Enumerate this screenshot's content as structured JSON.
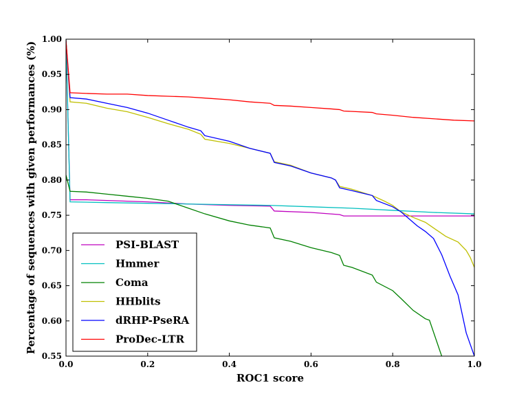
{
  "chart_data": {
    "type": "line",
    "title": "",
    "xlabel": "ROC1 score",
    "ylabel": "Percentage of sequences with given performances (%)",
    "xlim": [
      0.0,
      1.0
    ],
    "ylim": [
      0.55,
      1.0
    ],
    "x_ticks": [
      "0.0",
      "0.2",
      "0.4",
      "0.6",
      "0.8",
      "1.0"
    ],
    "y_ticks": [
      "0.55",
      "0.60",
      "0.65",
      "0.70",
      "0.75",
      "0.80",
      "0.85",
      "0.90",
      "0.95",
      "1.00"
    ],
    "grid": false,
    "legend_position": "lower-left",
    "series": [
      {
        "name": "PSI-BLAST",
        "color": "#bf00bf",
        "points": [
          [
            0.0,
            1.0
          ],
          [
            0.01,
            0.772
          ],
          [
            0.05,
            0.772
          ],
          [
            0.1,
            0.771
          ],
          [
            0.2,
            0.769
          ],
          [
            0.3,
            0.766
          ],
          [
            0.4,
            0.764
          ],
          [
            0.5,
            0.763
          ],
          [
            0.51,
            0.756
          ],
          [
            0.6,
            0.754
          ],
          [
            0.67,
            0.751
          ],
          [
            0.68,
            0.749
          ],
          [
            0.8,
            0.749
          ],
          [
            1.0,
            0.749
          ]
        ]
      },
      {
        "name": "Hmmer",
        "color": "#00bfbf",
        "points": [
          [
            0.0,
            1.0
          ],
          [
            0.01,
            0.769
          ],
          [
            0.1,
            0.768
          ],
          [
            0.2,
            0.767
          ],
          [
            0.3,
            0.766
          ],
          [
            0.4,
            0.765
          ],
          [
            0.5,
            0.764
          ],
          [
            0.6,
            0.762
          ],
          [
            0.7,
            0.76
          ],
          [
            0.8,
            0.757
          ],
          [
            0.9,
            0.754
          ],
          [
            1.0,
            0.752
          ]
        ]
      },
      {
        "name": "Coma",
        "color": "#008000",
        "points": [
          [
            0.0,
            0.807
          ],
          [
            0.01,
            0.784
          ],
          [
            0.05,
            0.783
          ],
          [
            0.1,
            0.78
          ],
          [
            0.15,
            0.777
          ],
          [
            0.2,
            0.774
          ],
          [
            0.25,
            0.77
          ],
          [
            0.3,
            0.76
          ],
          [
            0.34,
            0.752
          ],
          [
            0.4,
            0.742
          ],
          [
            0.45,
            0.736
          ],
          [
            0.5,
            0.732
          ],
          [
            0.51,
            0.718
          ],
          [
            0.55,
            0.713
          ],
          [
            0.6,
            0.704
          ],
          [
            0.65,
            0.697
          ],
          [
            0.67,
            0.693
          ],
          [
            0.68,
            0.679
          ],
          [
            0.7,
            0.676
          ],
          [
            0.75,
            0.665
          ],
          [
            0.76,
            0.655
          ],
          [
            0.8,
            0.643
          ],
          [
            0.82,
            0.632
          ],
          [
            0.85,
            0.615
          ],
          [
            0.88,
            0.603
          ],
          [
            0.89,
            0.601
          ],
          [
            0.92,
            0.55
          ]
        ]
      },
      {
        "name": "HHblits",
        "color": "#bfbf00",
        "points": [
          [
            0.0,
            0.999
          ],
          [
            0.01,
            0.911
          ],
          [
            0.05,
            0.909
          ],
          [
            0.1,
            0.902
          ],
          [
            0.15,
            0.897
          ],
          [
            0.2,
            0.889
          ],
          [
            0.25,
            0.88
          ],
          [
            0.3,
            0.872
          ],
          [
            0.33,
            0.865
          ],
          [
            0.34,
            0.858
          ],
          [
            0.4,
            0.852
          ],
          [
            0.45,
            0.845
          ],
          [
            0.5,
            0.838
          ],
          [
            0.51,
            0.826
          ],
          [
            0.55,
            0.821
          ],
          [
            0.6,
            0.81
          ],
          [
            0.65,
            0.803
          ],
          [
            0.66,
            0.8
          ],
          [
            0.67,
            0.791
          ],
          [
            0.7,
            0.787
          ],
          [
            0.75,
            0.778
          ],
          [
            0.78,
            0.77
          ],
          [
            0.8,
            0.764
          ],
          [
            0.82,
            0.755
          ],
          [
            0.85,
            0.747
          ],
          [
            0.88,
            0.74
          ],
          [
            0.9,
            0.732
          ],
          [
            0.93,
            0.72
          ],
          [
            0.96,
            0.712
          ],
          [
            0.98,
            0.7
          ],
          [
            0.99,
            0.69
          ],
          [
            1.0,
            0.676
          ]
        ]
      },
      {
        "name": "dRHP-PseRA",
        "color": "#0000ff",
        "points": [
          [
            0.0,
            0.998
          ],
          [
            0.01,
            0.917
          ],
          [
            0.05,
            0.915
          ],
          [
            0.1,
            0.909
          ],
          [
            0.15,
            0.903
          ],
          [
            0.2,
            0.895
          ],
          [
            0.25,
            0.885
          ],
          [
            0.3,
            0.875
          ],
          [
            0.33,
            0.87
          ],
          [
            0.34,
            0.863
          ],
          [
            0.4,
            0.855
          ],
          [
            0.45,
            0.845
          ],
          [
            0.5,
            0.838
          ],
          [
            0.51,
            0.825
          ],
          [
            0.55,
            0.82
          ],
          [
            0.6,
            0.81
          ],
          [
            0.65,
            0.803
          ],
          [
            0.66,
            0.8
          ],
          [
            0.67,
            0.789
          ],
          [
            0.7,
            0.785
          ],
          [
            0.75,
            0.778
          ],
          [
            0.76,
            0.771
          ],
          [
            0.8,
            0.762
          ],
          [
            0.82,
            0.755
          ],
          [
            0.84,
            0.745
          ],
          [
            0.86,
            0.735
          ],
          [
            0.88,
            0.727
          ],
          [
            0.9,
            0.717
          ],
          [
            0.92,
            0.694
          ],
          [
            0.94,
            0.664
          ],
          [
            0.96,
            0.637
          ],
          [
            0.98,
            0.583
          ],
          [
            1.0,
            0.55
          ]
        ]
      },
      {
        "name": "ProDec-LTR",
        "color": "#ff0000",
        "points": [
          [
            0.0,
            0.998
          ],
          [
            0.01,
            0.924
          ],
          [
            0.05,
            0.923
          ],
          [
            0.1,
            0.922
          ],
          [
            0.15,
            0.922
          ],
          [
            0.2,
            0.92
          ],
          [
            0.25,
            0.919
          ],
          [
            0.3,
            0.918
          ],
          [
            0.35,
            0.916
          ],
          [
            0.4,
            0.914
          ],
          [
            0.45,
            0.911
          ],
          [
            0.5,
            0.909
          ],
          [
            0.51,
            0.906
          ],
          [
            0.55,
            0.905
          ],
          [
            0.6,
            0.903
          ],
          [
            0.65,
            0.901
          ],
          [
            0.67,
            0.9
          ],
          [
            0.68,
            0.898
          ],
          [
            0.75,
            0.896
          ],
          [
            0.76,
            0.894
          ],
          [
            0.8,
            0.892
          ],
          [
            0.85,
            0.889
          ],
          [
            0.9,
            0.887
          ],
          [
            0.95,
            0.885
          ],
          [
            1.0,
            0.884
          ]
        ]
      }
    ]
  }
}
